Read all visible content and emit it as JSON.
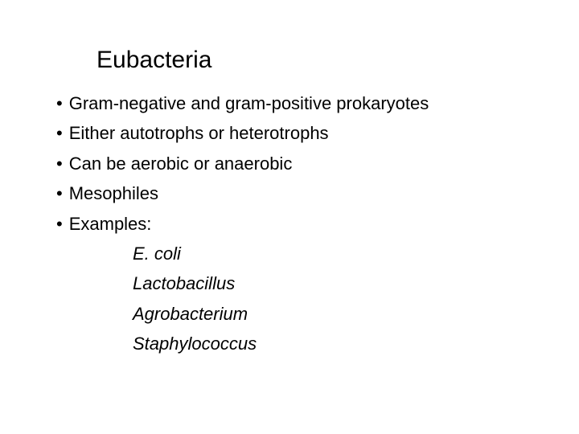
{
  "slide": {
    "title": "Eubacteria",
    "bullets": [
      {
        "text": "Gram-negative and gram-positive prokaryotes"
      },
      {
        "text": "Either autotrophs or heterotrophs"
      },
      {
        "text": "Can be aerobic or anaerobic"
      },
      {
        "text": "Mesophiles"
      },
      {
        "text": "Examples:"
      }
    ],
    "examples": [
      "E. coli",
      "Lactobacillus",
      "Agrobacterium",
      "Staphylococcus"
    ],
    "styling": {
      "background_color": "#ffffff",
      "text_color": "#000000",
      "title_fontsize": 30,
      "body_fontsize": 22,
      "font_family": "Arial, Helvetica, sans-serif",
      "examples_font_style": "italic",
      "bullet_char": "•"
    }
  }
}
